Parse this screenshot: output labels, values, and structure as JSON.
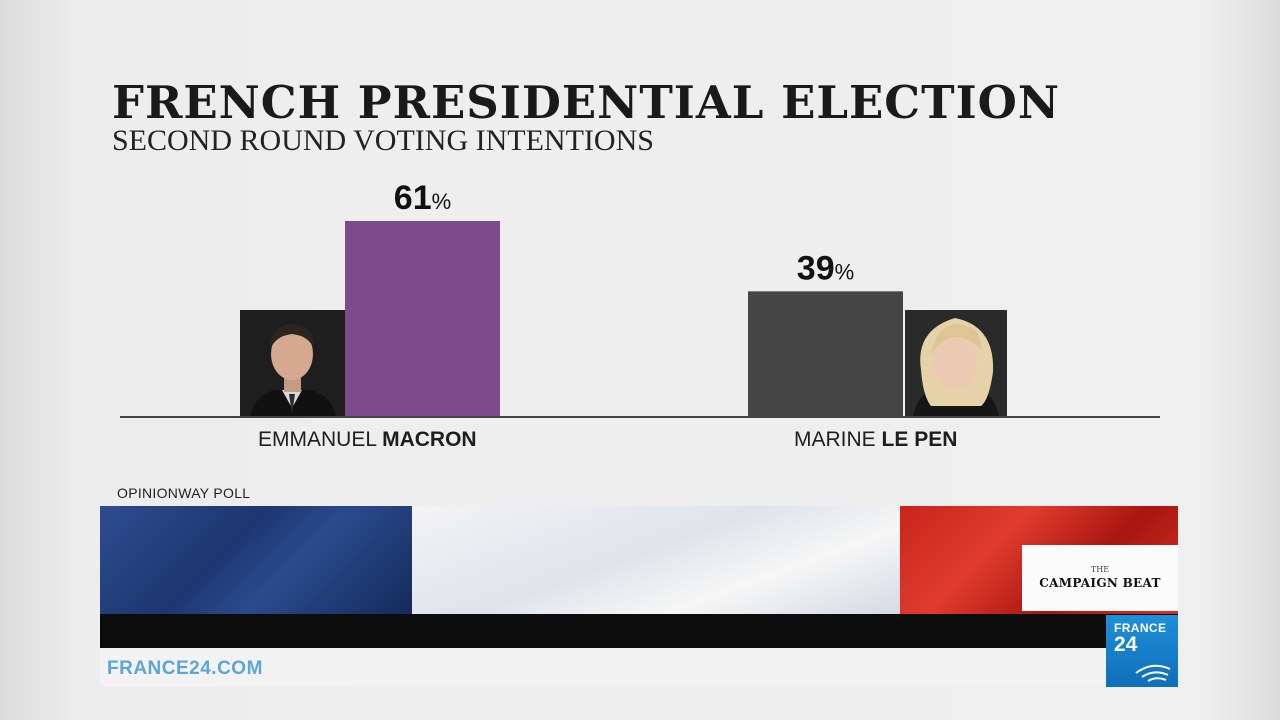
{
  "header": {
    "title": "FRENCH PRESIDENTIAL ELECTION",
    "subtitle": "SECOND ROUND VOTING INTENTIONS"
  },
  "chart_data": {
    "type": "bar",
    "title": "FRENCH PRESIDENTIAL ELECTION",
    "subtitle": "SECOND ROUND VOTING INTENTIONS",
    "categories": [
      "EMMANUEL MACRON",
      "MARINE LE PEN"
    ],
    "values": [
      61,
      39
    ],
    "value_labels": [
      "61",
      "39"
    ],
    "unit": "%",
    "ylim": [
      0,
      61
    ],
    "grid": false,
    "colors": [
      "#7d4a8c",
      "#454545"
    ]
  },
  "candidates": [
    {
      "first": "EMMANUEL",
      "last": "MACRON"
    },
    {
      "first": "MARINE",
      "last": "LE PEN"
    }
  ],
  "source": "OPINIONWAY POLL",
  "footer": {
    "site": "FRANCE24.COM",
    "show_the": "THE",
    "show_name": "CAMPAIGN BEAT",
    "channel_top": "FRANCE",
    "channel_num": "24"
  },
  "flag_colors": [
    "#1d3670",
    "#f3f3f5",
    "#c8241c"
  ]
}
